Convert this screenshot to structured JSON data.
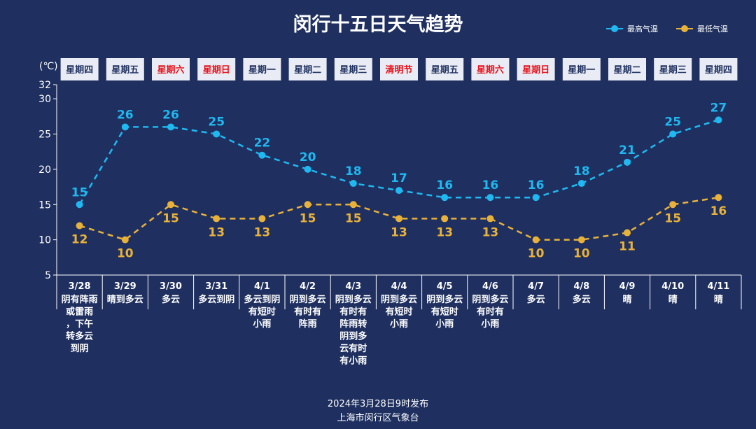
{
  "chart_data": {
    "type": "line",
    "title": "闵行十五日天气趋势",
    "unit_label": "(℃)",
    "ylim": [
      5,
      32
    ],
    "yticks": [
      5,
      10,
      15,
      20,
      25,
      30,
      32
    ],
    "grid": false,
    "legend_position": "top-right",
    "weekdays": [
      "星期四",
      "星期五",
      "星期六",
      "星期日",
      "星期一",
      "星期二",
      "星期三",
      "清明节",
      "星期五",
      "星期六",
      "星期日",
      "星期一",
      "星期二",
      "星期三",
      "星期四"
    ],
    "weekday_red": [
      false,
      false,
      true,
      true,
      false,
      false,
      false,
      true,
      false,
      true,
      true,
      false,
      false,
      false,
      false
    ],
    "categories": [
      "3/28",
      "3/29",
      "3/30",
      "3/31",
      "4/1",
      "4/2",
      "4/3",
      "4/4",
      "4/5",
      "4/6",
      "4/7",
      "4/8",
      "4/9",
      "4/10",
      "4/11"
    ],
    "weather": [
      [
        "阴有阵雨",
        "或雷雨",
        "，下午",
        "转多云",
        "到阴"
      ],
      [
        "晴到多云"
      ],
      [
        "多云"
      ],
      [
        "多云到阴"
      ],
      [
        "多云到阴",
        "有短时",
        "小雨"
      ],
      [
        "阴到多云",
        "有时有",
        "阵雨"
      ],
      [
        "阴到多云",
        "有时有",
        "阵雨转",
        "阴到多",
        "云有时",
        "有小雨"
      ],
      [
        "阴到多云",
        "有短时",
        "小雨"
      ],
      [
        "阴到多云",
        "有短时",
        "小雨"
      ],
      [
        "阴到多云",
        "有时有",
        "小雨"
      ],
      [
        "多云"
      ],
      [
        "多云"
      ],
      [
        "晴"
      ],
      [
        "晴"
      ],
      [
        "晴"
      ]
    ],
    "series": [
      {
        "name": "最高气温",
        "color": "#1fb8f0",
        "values": [
          15,
          26,
          26,
          25,
          22,
          20,
          18,
          17,
          16,
          16,
          16,
          18,
          21,
          25,
          27
        ]
      },
      {
        "name": "最低气温",
        "color": "#e8b13a",
        "values": [
          12,
          10,
          15,
          13,
          13,
          15,
          15,
          13,
          13,
          13,
          10,
          10,
          11,
          15,
          16
        ]
      }
    ],
    "weekday_red_color": "#e8101a",
    "weekday_box_color": "#e9ecf4",
    "weekday_text_color": "#1f3060"
  },
  "footer": {
    "publish": "2024年3月28日9时发布",
    "org": "上海市闵行区气象台"
  }
}
